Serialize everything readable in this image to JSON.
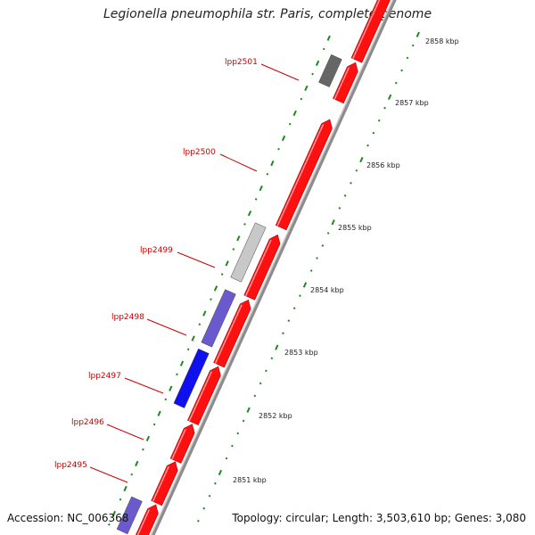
{
  "title": "Legionella pneumophila str. Paris, complete genome",
  "accession": "Accession: NC_006368",
  "summary": "Topology: circular; Length: 3,503,610 bp; Genes: 3,080",
  "gene_labels": [
    "lpp2501",
    "lpp2500",
    "lpp2499",
    "lpp2498",
    "lpp2497",
    "lpp2496",
    "lpp2495"
  ],
  "kbp_labels": [
    "2858 kbp",
    "2857 kbp",
    "2856 kbp",
    "2855 kbp",
    "2854 kbp",
    "2853 kbp",
    "2852 kbp",
    "2851 kbp"
  ],
  "colors": {
    "cds": "#ff1010",
    "backbone": "#8c8c8c",
    "blast_dark": "#666666",
    "blast_light": "#c8c8c8",
    "blast_purple": "#6a5acd",
    "blast_blue": "#1010ee",
    "tick": "#1a8a1a",
    "label": "#cc0000"
  }
}
